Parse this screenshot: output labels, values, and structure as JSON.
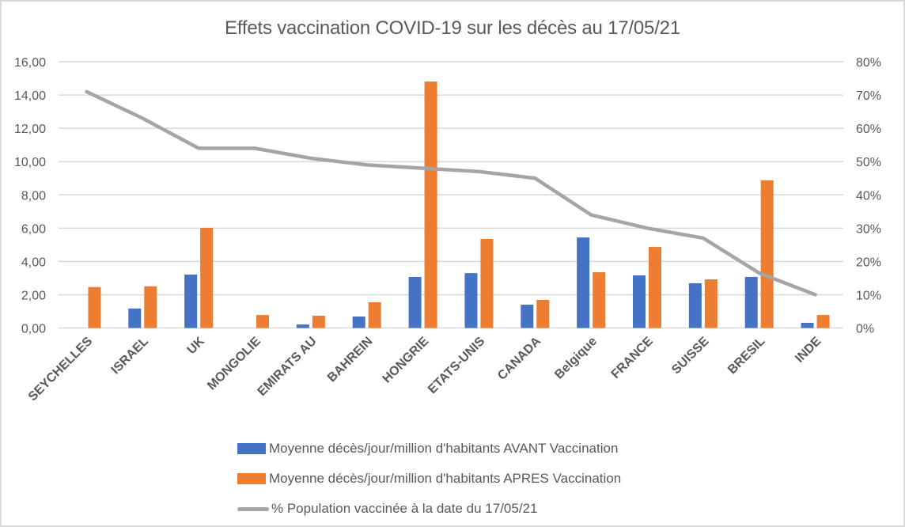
{
  "chart_data": {
    "type": "bar",
    "title": "Effets vaccination COVID-19 sur les décès au 17/05/21",
    "categories": [
      "SEYCHELLES",
      "ISRAEL",
      "UK",
      "MONGOLIE",
      "EMIRATS AU",
      "BAHREIN",
      "HONGRIE",
      "ETATS-UNIS",
      "CANADA",
      "Belgique",
      "FRANCE",
      "SUISSE",
      "BRESIL",
      "INDE"
    ],
    "series": [
      {
        "name": "Moyenne décès/jour/million d'habitants AVANT Vaccination",
        "type": "bar",
        "axis": "left",
        "color": "#4472c4",
        "values": [
          0.0,
          1.17,
          3.21,
          0.0,
          0.21,
          0.69,
          3.07,
          3.3,
          1.4,
          5.44,
          3.16,
          2.69,
          3.07,
          0.31
        ]
      },
      {
        "name": "Moyenne décès/jour/million d'habitants APRES Vaccination",
        "type": "bar",
        "axis": "left",
        "color": "#ed7d31",
        "values": [
          2.46,
          2.5,
          6.02,
          0.78,
          0.74,
          1.55,
          14.81,
          5.35,
          1.69,
          3.35,
          4.87,
          2.92,
          8.87,
          0.78
        ]
      },
      {
        "name": "% Population vaccinée à la date du 17/05/21",
        "type": "line",
        "axis": "right",
        "color": "#a5a5a5",
        "values": [
          71,
          63,
          54,
          54,
          51,
          49,
          48,
          47,
          45,
          34,
          30,
          27,
          16.5,
          10
        ]
      }
    ],
    "ylim": [
      0,
      16
    ],
    "y2lim": [
      0,
      80
    ],
    "yticks": [
      "0,00",
      "2,00",
      "4,00",
      "6,00",
      "8,00",
      "10,00",
      "12,00",
      "14,00",
      "16,00"
    ],
    "y2ticks": [
      "0%",
      "10%",
      "20%",
      "30%",
      "40%",
      "50%",
      "60%",
      "70%",
      "80%"
    ],
    "xlabel": "",
    "ylabel": "",
    "grid": true,
    "legend_position": "bottom"
  }
}
